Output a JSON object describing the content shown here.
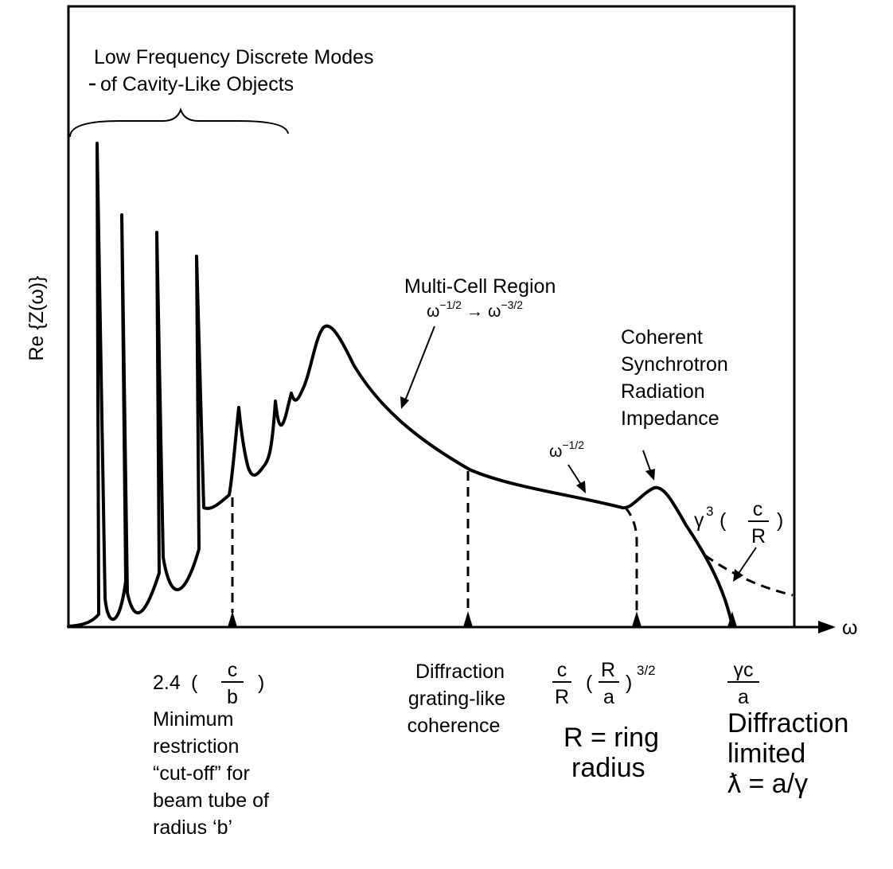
{
  "y_axis_label": "Re {Z(ω)}",
  "x_axis_label": "ω",
  "top_note": {
    "line1": "Low Frequency Discrete Modes",
    "line2": "of Cavity-Like Objects"
  },
  "multicell": {
    "line1": "Multi-Cell Region",
    "power_start_base": "ω",
    "power_start_exp": "−1/2",
    "arrow": "→",
    "power_end_base": "ω",
    "power_end_exp": "−3/2"
  },
  "omega_half": {
    "base": "ω",
    "exp": "−1/2"
  },
  "csr": {
    "line1": "Coherent",
    "line2": "Synchrotron",
    "line3": "Radiation",
    "line4": "Impedance"
  },
  "gamma_factor": {
    "gamma": "γ",
    "exp": "3",
    "open": "(",
    "num": "c",
    "den": "R",
    "close": ")"
  },
  "marker_cutoff": {
    "coef": "2.4",
    "open": "(",
    "num": "c",
    "den": "b",
    "close": ")",
    "line1": "Minimum",
    "line2": "restriction",
    "line3": "“cut-off” for",
    "line4": "beam tube of",
    "line5": "radius ‘b’"
  },
  "marker_grating": {
    "line1": "Diffraction",
    "line2": "grating-like",
    "line3": "coherence"
  },
  "marker_ring": {
    "num1": "c",
    "den1": "R",
    "open": "(",
    "num2": "R",
    "den2": "a",
    "close": ")",
    "exp": "3/2",
    "line1": "R = ring",
    "line2": "radius"
  },
  "marker_limit": {
    "num": "γc",
    "den": "a",
    "line1": "Diffraction",
    "line2": "limited",
    "line3": "ƛ = a/γ"
  }
}
